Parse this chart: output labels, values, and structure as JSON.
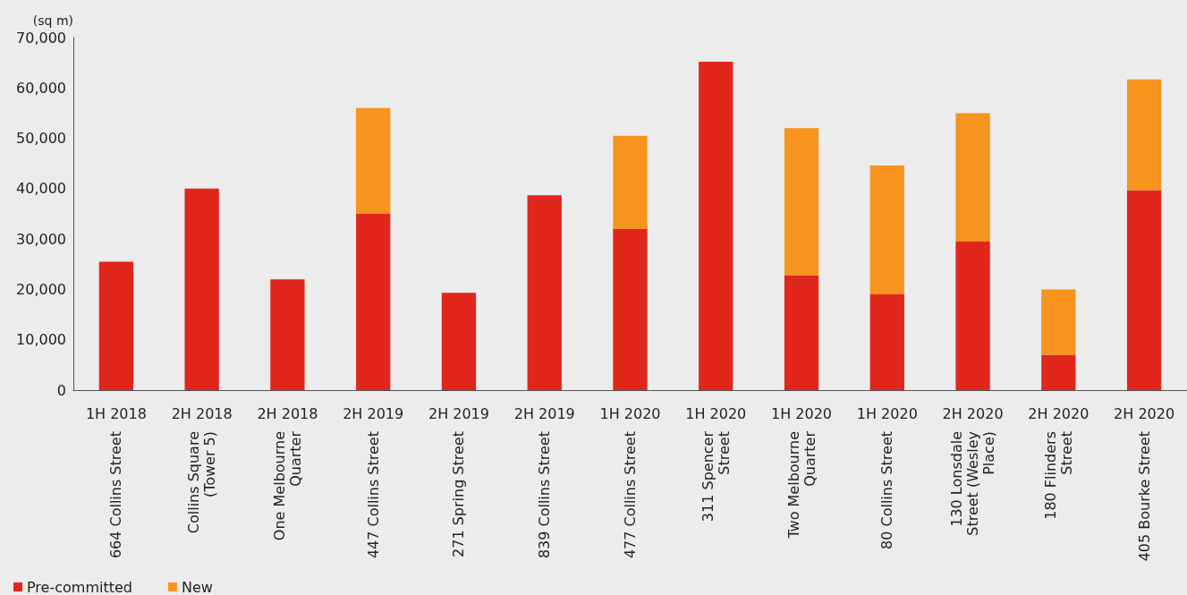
{
  "chart_data": {
    "type": "bar",
    "stacked": true,
    "ylabel": "(sq m)",
    "categories": [
      "1H 2018\n664 Collins Street",
      "2H 2018\nCollins Square\n(Tower 5)",
      "2H 2018\nOne Melbourne\nQuarter",
      "2H 2019\n447 Collins Street",
      "2H 2019\n271 Spring Street",
      "2H 2019\n839 Collins Street",
      "1H 2020\n477 Collins Street",
      "1H 2020\n311 Spencer\nStreet",
      "1H 2020\nTwo Melbourne\nQuarter",
      "1H 2020\n80 Collins Street",
      "2H 2020\n130 Lonsdale\nStreet (Wesley\nPlace)",
      "2H 2020\n180 Flinders\nStreet",
      "2H 2020\n405 Bourke Street"
    ],
    "series": [
      {
        "name": "Pre-committed",
        "color": "#e1261c",
        "values": [
          25500,
          40000,
          22000,
          35000,
          19300,
          38700,
          32000,
          65200,
          22800,
          19000,
          29500,
          7000,
          39700
        ]
      },
      {
        "name": "New",
        "color": "#f7941d",
        "values": [
          null,
          null,
          null,
          21000,
          null,
          null,
          18500,
          null,
          29200,
          25600,
          25500,
          13000,
          22000
        ]
      }
    ],
    "ylim": [
      0,
      70000
    ],
    "yticks": [
      0,
      {
        "value": 10000,
        "label": "10,000"
      },
      {
        "value": 20000,
        "label": "20,000"
      },
      {
        "value": 30000,
        "label": "30,000"
      },
      {
        "value": 40000,
        "label": "40,000"
      },
      {
        "value": 50000,
        "label": "50,000"
      },
      {
        "value": 60000,
        "label": "60,000"
      },
      {
        "value": 70000,
        "label": "70,000"
      }
    ],
    "grid": false,
    "legend": "bottom left"
  }
}
